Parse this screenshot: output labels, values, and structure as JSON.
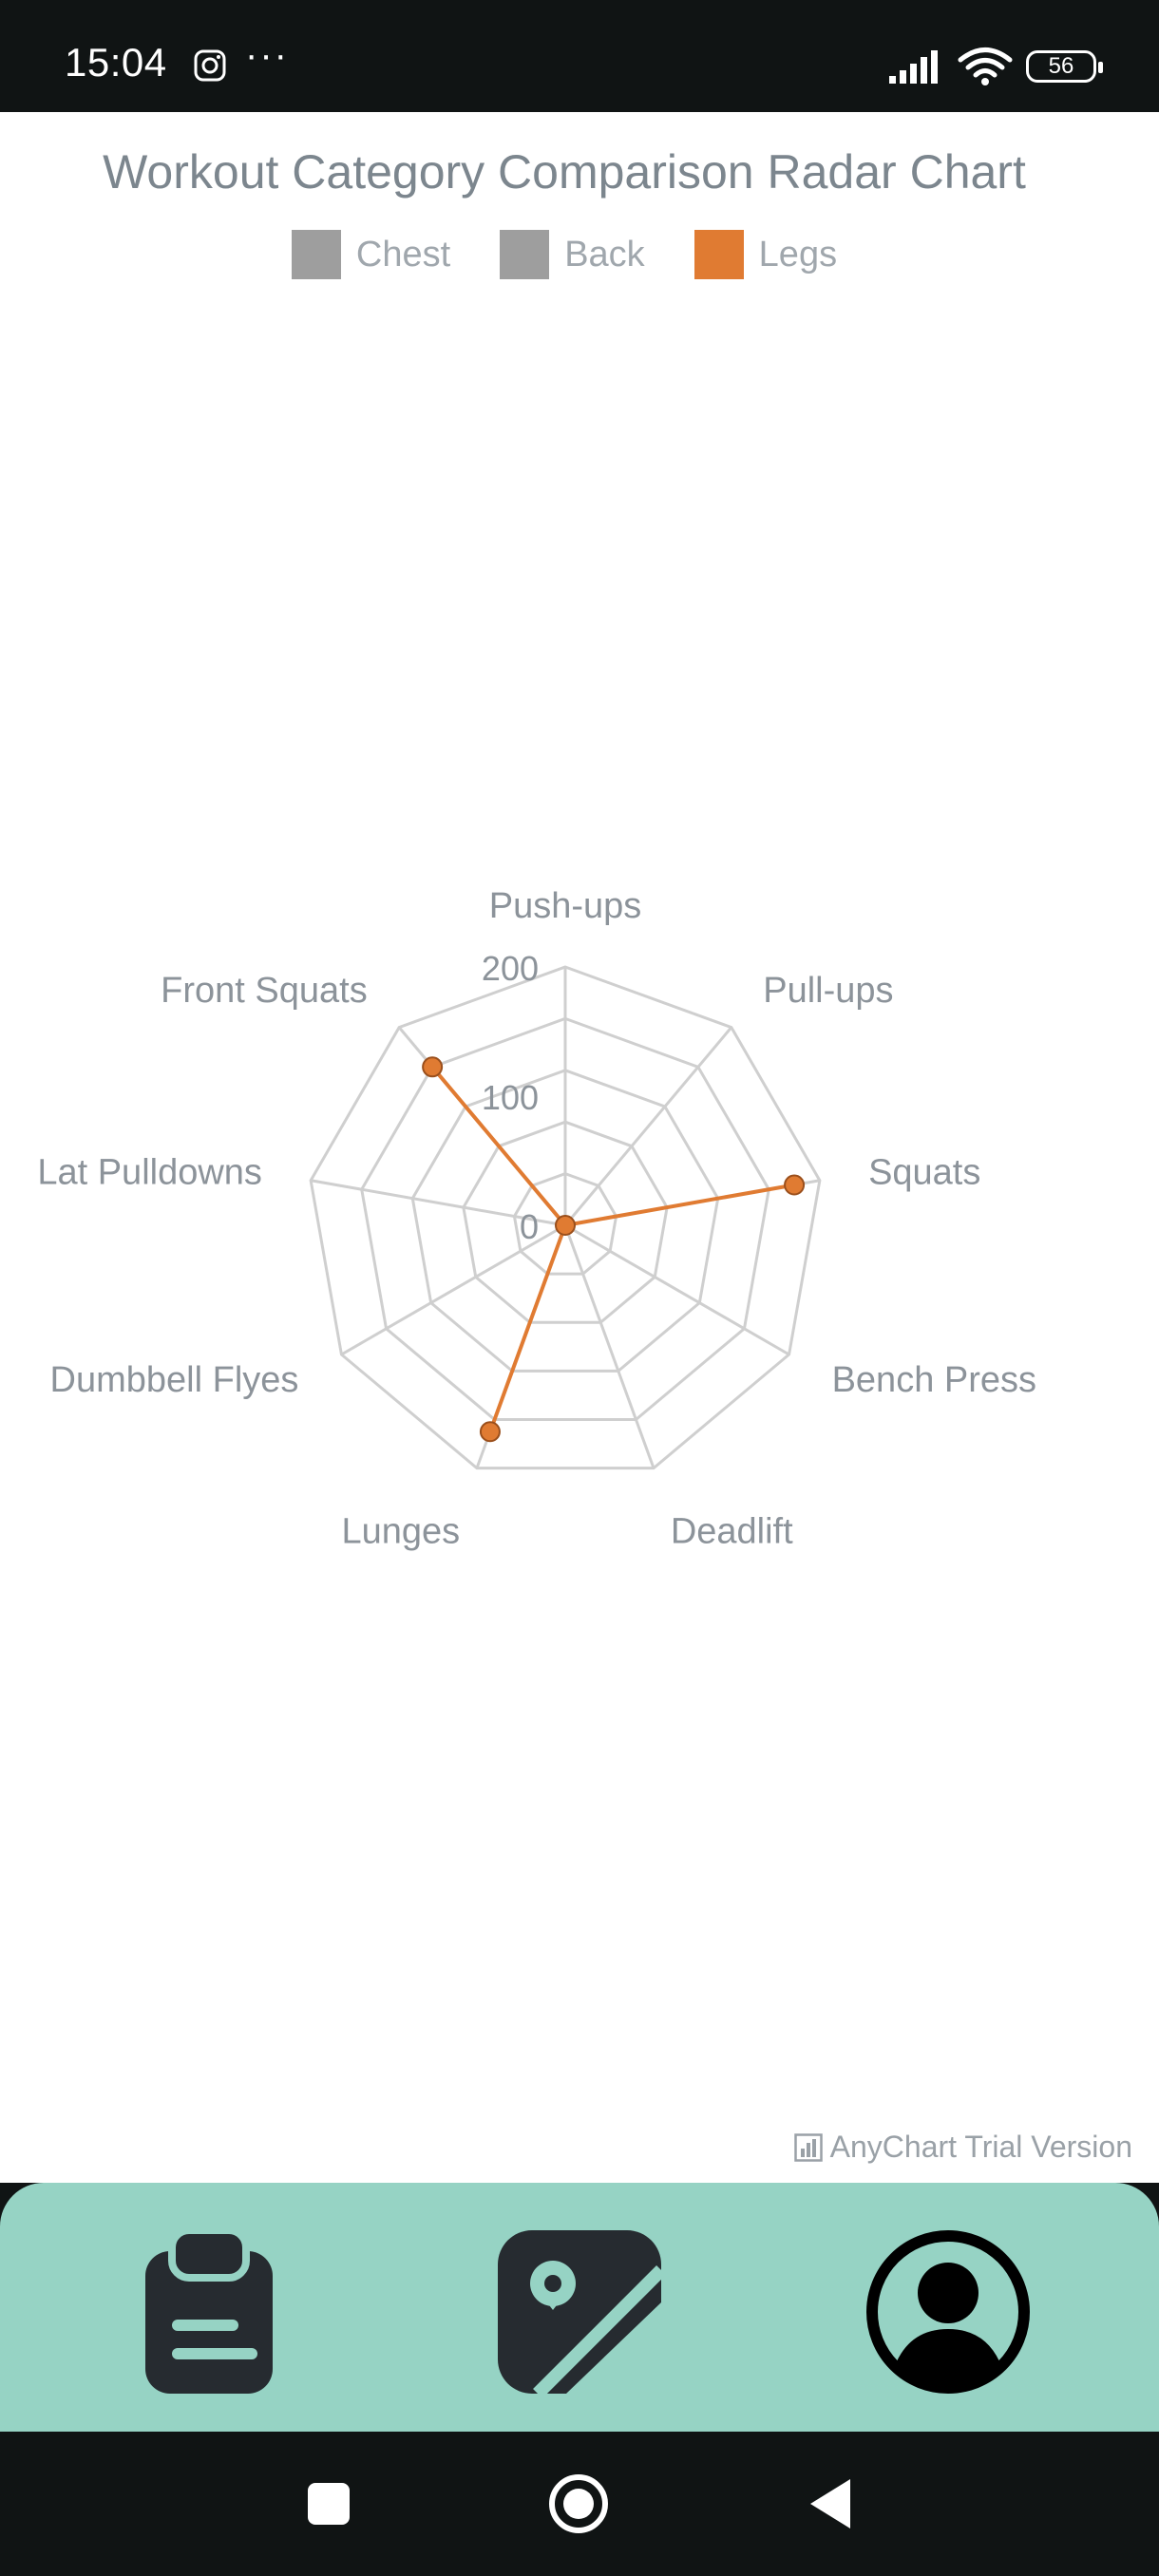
{
  "status_bar": {
    "time": "15:04",
    "more_label": "···",
    "battery_level": "56"
  },
  "chart_data": {
    "type": "radar",
    "title": "Workout Category Comparison Radar Chart",
    "legend": [
      {
        "name": "Chest",
        "color": "#9e9e9e"
      },
      {
        "name": "Back",
        "color": "#9e9e9e"
      },
      {
        "name": "Legs",
        "color": "#e07b32"
      }
    ],
    "categories": [
      "Push-ups",
      "Pull-ups",
      "Squats",
      "Bench Press",
      "Deadlift",
      "Lunges",
      "Dumbbell Flyes",
      "Lat Pulldowns",
      "Front Squats"
    ],
    "rlim": [
      0,
      200
    ],
    "ticks": [
      "0",
      "100",
      "200"
    ],
    "grid_levels": 5,
    "series": [
      {
        "name": "Legs",
        "color": "#e07b32",
        "values": [
          0,
          0,
          180,
          0,
          0,
          170,
          0,
          0,
          160
        ]
      }
    ]
  },
  "credits": {
    "label": "AnyChart Trial Version"
  },
  "bottom_nav": {
    "items": [
      {
        "icon": "clipboard-icon"
      },
      {
        "icon": "image-icon"
      },
      {
        "icon": "profile-icon"
      }
    ],
    "background": "#96d3c4"
  },
  "system_nav": {
    "items": [
      "recents-button",
      "home-button",
      "back-button"
    ]
  }
}
